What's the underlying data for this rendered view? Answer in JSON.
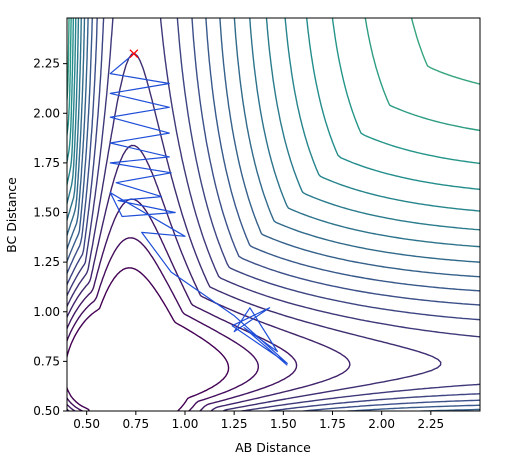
{
  "chart_data": {
    "type": "contour",
    "title": "",
    "xlabel": "AB Distance",
    "ylabel": "BC Distance",
    "xlim": [
      0.4,
      2.5
    ],
    "ylim": [
      0.5,
      2.48
    ],
    "xticks": [
      0.5,
      0.75,
      1.0,
      1.25,
      1.5,
      1.75,
      2.0,
      2.25
    ],
    "xtick_labels": [
      "0.50",
      "0.75",
      "1.00",
      "1.25",
      "1.50",
      "1.75",
      "2.00",
      "2.25"
    ],
    "yticks": [
      0.5,
      0.75,
      1.0,
      1.25,
      1.5,
      1.75,
      2.0,
      2.25
    ],
    "ytick_labels": [
      "0.50",
      "0.75",
      "1.00",
      "1.25",
      "1.50",
      "1.75",
      "2.00",
      "2.25"
    ],
    "grid": false,
    "colormap": [
      "#440154",
      "#3b528b",
      "#21918c",
      "#5ec962",
      "#fde725"
    ],
    "trajectory_color": "#1f4fd8",
    "marker": {
      "x": 0.74,
      "y": 2.3,
      "symbol": "x",
      "color": "#ff0000"
    },
    "trajectory": [
      [
        0.74,
        2.3
      ],
      [
        0.62,
        2.2
      ],
      [
        0.92,
        2.15
      ],
      [
        0.62,
        2.1
      ],
      [
        0.92,
        2.03
      ],
      [
        0.62,
        1.98
      ],
      [
        0.92,
        1.9
      ],
      [
        0.62,
        1.85
      ],
      [
        0.92,
        1.78
      ],
      [
        0.62,
        1.75
      ],
      [
        0.93,
        1.7
      ],
      [
        0.65,
        1.65
      ],
      [
        0.88,
        1.58
      ],
      [
        0.66,
        1.56
      ],
      [
        0.95,
        1.5
      ],
      [
        0.68,
        1.48
      ],
      [
        0.62,
        1.6
      ],
      [
        1.0,
        1.38
      ],
      [
        0.78,
        1.4
      ],
      [
        0.93,
        1.2
      ],
      [
        1.25,
        0.98
      ],
      [
        1.52,
        0.74
      ],
      [
        1.24,
        0.93
      ],
      [
        1.43,
        1.02
      ],
      [
        1.25,
        0.9
      ],
      [
        1.33,
        1.02
      ],
      [
        1.47,
        0.8
      ],
      [
        1.3,
        0.92
      ],
      [
        1.52,
        0.73
      ]
    ]
  }
}
